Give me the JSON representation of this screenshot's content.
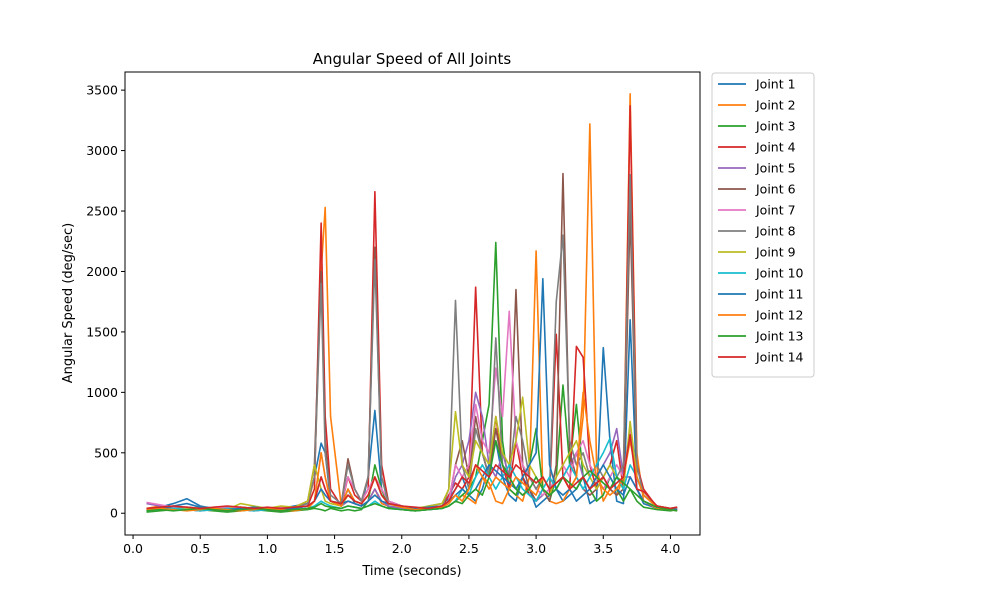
{
  "chart_data": {
    "type": "line",
    "title": "Angular Speed of All Joints",
    "xlabel": "Time (seconds)",
    "ylabel": "Angular Speed (deg/sec)",
    "xlim": [
      -0.06,
      4.22
    ],
    "ylim": [
      -180,
      3650
    ],
    "xticks": [
      0.0,
      0.5,
      1.0,
      1.5,
      2.0,
      2.5,
      3.0,
      3.5,
      4.0
    ],
    "xtick_labels": [
      "0.0",
      "0.5",
      "1.0",
      "1.5",
      "2.0",
      "2.5",
      "3.0",
      "3.5",
      "4.0"
    ],
    "yticks": [
      0,
      500,
      1000,
      1500,
      2000,
      2500,
      3000,
      3500
    ],
    "ytick_labels": [
      "0",
      "500",
      "1000",
      "1500",
      "2000",
      "2500",
      "3000",
      "3500"
    ],
    "grid": false,
    "legend_position": "outside-upper-right",
    "x": [
      0.1,
      0.2,
      0.3,
      0.4,
      0.5,
      0.6,
      0.7,
      0.8,
      0.9,
      1.0,
      1.1,
      1.2,
      1.3,
      1.35,
      1.4,
      1.43,
      1.47,
      1.55,
      1.6,
      1.65,
      1.7,
      1.75,
      1.8,
      1.85,
      1.9,
      2.0,
      2.1,
      2.2,
      2.3,
      2.35,
      2.4,
      2.45,
      2.5,
      2.55,
      2.6,
      2.65,
      2.7,
      2.75,
      2.8,
      2.85,
      2.9,
      2.95,
      3.0,
      3.05,
      3.1,
      3.15,
      3.2,
      3.25,
      3.3,
      3.35,
      3.4,
      3.45,
      3.5,
      3.55,
      3.6,
      3.65,
      3.7,
      3.75,
      3.8,
      3.9,
      4.0,
      4.05
    ],
    "series": [
      {
        "name": "Joint 1",
        "color": "#1f77b4",
        "values": [
          20,
          50,
          80,
          120,
          60,
          40,
          30,
          50,
          40,
          30,
          40,
          60,
          80,
          300,
          580,
          500,
          100,
          60,
          200,
          80,
          60,
          300,
          850,
          200,
          60,
          40,
          30,
          60,
          80,
          120,
          200,
          300,
          150,
          100,
          200,
          400,
          600,
          300,
          150,
          100,
          300,
          200,
          50,
          100,
          150,
          200,
          100,
          150,
          200,
          300,
          80,
          120,
          1370,
          600,
          100,
          80,
          1600,
          200,
          80,
          40,
          30,
          40
        ]
      },
      {
        "name": "Joint 2",
        "color": "#ff7f0e",
        "values": [
          40,
          60,
          50,
          40,
          30,
          20,
          40,
          30,
          20,
          30,
          40,
          50,
          60,
          300,
          2000,
          2530,
          800,
          60,
          100,
          80,
          60,
          100,
          200,
          80,
          60,
          30,
          20,
          30,
          40,
          60,
          100,
          150,
          120,
          80,
          300,
          250,
          100,
          80,
          200,
          150,
          100,
          300,
          2170,
          200,
          100,
          80,
          100,
          200,
          300,
          800,
          3220,
          400,
          100,
          200,
          150,
          300,
          3470,
          500,
          100,
          40,
          30,
          20
        ]
      },
      {
        "name": "Joint 3",
        "color": "#2ca02c",
        "values": [
          10,
          20,
          30,
          40,
          30,
          20,
          10,
          20,
          30,
          20,
          10,
          20,
          30,
          40,
          30,
          20,
          40,
          20,
          30,
          20,
          30,
          100,
          400,
          200,
          50,
          30,
          20,
          30,
          40,
          60,
          100,
          150,
          200,
          300,
          600,
          900,
          2240,
          600,
          200,
          150,
          300,
          400,
          700,
          200,
          100,
          300,
          1060,
          400,
          900,
          300,
          200,
          100,
          150,
          300,
          200,
          100,
          200,
          100,
          50,
          30,
          20,
          30
        ]
      },
      {
        "name": "Joint 4",
        "color": "#d62728",
        "values": [
          30,
          50,
          40,
          30,
          20,
          40,
          30,
          20,
          40,
          30,
          20,
          40,
          60,
          200,
          2400,
          800,
          200,
          60,
          300,
          150,
          100,
          200,
          2660,
          400,
          100,
          60,
          40,
          30,
          50,
          150,
          250,
          200,
          300,
          1870,
          500,
          300,
          800,
          400,
          200,
          600,
          300,
          150,
          100,
          200,
          150,
          1480,
          300,
          200,
          1380,
          1290,
          400,
          200,
          300,
          400,
          600,
          200,
          3370,
          400,
          200,
          50,
          30,
          40
        ]
      },
      {
        "name": "Joint 5",
        "color": "#9467bd",
        "values": [
          80,
          60,
          40,
          30,
          20,
          30,
          20,
          30,
          20,
          30,
          20,
          30,
          40,
          100,
          300,
          200,
          100,
          60,
          100,
          80,
          60,
          100,
          200,
          100,
          60,
          40,
          30,
          40,
          50,
          100,
          300,
          400,
          600,
          1000,
          800,
          400,
          300,
          500,
          300,
          200,
          150,
          200,
          100,
          150,
          200,
          250,
          300,
          400,
          500,
          300,
          200,
          300,
          400,
          500,
          700,
          300,
          300,
          200,
          100,
          50,
          30,
          40
        ]
      },
      {
        "name": "Joint 6",
        "color": "#8c564b",
        "values": [
          40,
          30,
          40,
          50,
          40,
          30,
          40,
          50,
          40,
          30,
          40,
          50,
          100,
          400,
          2000,
          600,
          100,
          80,
          450,
          200,
          100,
          300,
          2200,
          300,
          100,
          60,
          40,
          50,
          60,
          100,
          400,
          600,
          300,
          800,
          500,
          300,
          700,
          400,
          300,
          1850,
          400,
          200,
          100,
          200,
          100,
          400,
          2810,
          500,
          300,
          200,
          150,
          200,
          300,
          200,
          150,
          200,
          2500,
          300,
          150,
          60,
          40,
          50
        ]
      },
      {
        "name": "Joint 7",
        "color": "#e377c2",
        "values": [
          90,
          70,
          50,
          40,
          30,
          40,
          50,
          40,
          30,
          40,
          50,
          40,
          60,
          100,
          500,
          300,
          100,
          80,
          300,
          200,
          100,
          200,
          300,
          200,
          100,
          60,
          40,
          50,
          60,
          100,
          400,
          300,
          400,
          900,
          600,
          500,
          1200,
          800,
          1670,
          600,
          400,
          300,
          200,
          150,
          200,
          300,
          400,
          300,
          500,
          600,
          400,
          300,
          200,
          300,
          400,
          300,
          700,
          200,
          100,
          50,
          40,
          50
        ]
      },
      {
        "name": "Joint 8",
        "color": "#7f7f7f",
        "values": [
          20,
          30,
          40,
          50,
          40,
          30,
          40,
          30,
          40,
          30,
          40,
          50,
          80,
          300,
          1900,
          500,
          150,
          80,
          400,
          200,
          100,
          300,
          2100,
          300,
          80,
          50,
          40,
          30,
          50,
          200,
          1760,
          400,
          200,
          700,
          500,
          300,
          1450,
          400,
          300,
          800,
          600,
          300,
          200,
          300,
          200,
          1750,
          2300,
          600,
          400,
          500,
          300,
          400,
          300,
          200,
          300,
          400,
          2800,
          400,
          150,
          50,
          40,
          30
        ]
      },
      {
        "name": "Joint 9",
        "color": "#bcbd22",
        "values": [
          30,
          40,
          30,
          40,
          50,
          40,
          30,
          80,
          60,
          40,
          60,
          50,
          100,
          400,
          200,
          100,
          80,
          60,
          150,
          100,
          80,
          150,
          300,
          150,
          80,
          50,
          40,
          60,
          80,
          200,
          840,
          400,
          300,
          600,
          500,
          400,
          800,
          500,
          400,
          600,
          960,
          400,
          300,
          200,
          150,
          300,
          400,
          500,
          600,
          400,
          300,
          200,
          300,
          400,
          300,
          200,
          760,
          300,
          150,
          60,
          40,
          50
        ]
      },
      {
        "name": "Joint 10",
        "color": "#17becf",
        "values": [
          20,
          30,
          40,
          30,
          20,
          30,
          40,
          30,
          20,
          30,
          40,
          30,
          40,
          60,
          100,
          80,
          60,
          40,
          60,
          50,
          40,
          60,
          100,
          60,
          40,
          30,
          20,
          30,
          40,
          60,
          100,
          200,
          150,
          300,
          400,
          300,
          200,
          300,
          400,
          300,
          200,
          150,
          100,
          200,
          300,
          200,
          300,
          400,
          300,
          200,
          300,
          400,
          500,
          620,
          300,
          200,
          400,
          300,
          150,
          60,
          30,
          20
        ]
      },
      {
        "name": "Joint 11",
        "color": "#1f77b4",
        "values": [
          40,
          30,
          60,
          80,
          50,
          40,
          30,
          40,
          50,
          40,
          30,
          40,
          60,
          100,
          200,
          150,
          100,
          80,
          100,
          80,
          60,
          100,
          150,
          100,
          80,
          60,
          40,
          50,
          60,
          100,
          150,
          200,
          150,
          200,
          300,
          400,
          350,
          300,
          250,
          200,
          300,
          400,
          500,
          1940,
          400,
          200,
          150,
          200,
          100,
          150,
          200,
          300,
          400,
          300,
          200,
          150,
          300,
          200,
          100,
          50,
          40,
          30
        ]
      },
      {
        "name": "Joint 12",
        "color": "#ff7f0e",
        "values": [
          30,
          40,
          30,
          20,
          30,
          40,
          30,
          20,
          30,
          40,
          30,
          20,
          40,
          100,
          500,
          300,
          100,
          60,
          200,
          100,
          80,
          150,
          300,
          150,
          80,
          50,
          30,
          40,
          50,
          80,
          150,
          100,
          200,
          400,
          300,
          200,
          300,
          250,
          200,
          300,
          250,
          200,
          150,
          300,
          200,
          250,
          300,
          200,
          300,
          1000,
          600,
          300,
          200,
          150,
          200,
          300,
          600,
          300,
          150,
          50,
          30,
          20
        ]
      },
      {
        "name": "Joint 13",
        "color": "#2ca02c",
        "values": [
          20,
          30,
          20,
          30,
          40,
          30,
          20,
          30,
          40,
          30,
          20,
          30,
          40,
          50,
          80,
          60,
          50,
          40,
          60,
          50,
          40,
          60,
          80,
          60,
          40,
          30,
          20,
          30,
          40,
          60,
          100,
          80,
          150,
          200,
          150,
          300,
          600,
          400,
          300,
          200,
          150,
          200,
          300,
          200,
          150,
          200,
          300,
          250,
          200,
          300,
          350,
          300,
          250,
          200,
          300,
          250,
          200,
          150,
          100,
          50,
          30,
          20
        ]
      },
      {
        "name": "Joint 14",
        "color": "#d62728",
        "values": [
          40,
          50,
          60,
          50,
          40,
          50,
          60,
          50,
          40,
          50,
          40,
          50,
          60,
          100,
          300,
          200,
          100,
          80,
          150,
          100,
          80,
          150,
          300,
          150,
          80,
          60,
          50,
          40,
          60,
          100,
          200,
          300,
          250,
          400,
          350,
          300,
          400,
          350,
          300,
          400,
          350,
          300,
          250,
          300,
          200,
          250,
          300,
          200,
          250,
          300,
          200,
          250,
          300,
          200,
          250,
          300,
          650,
          200,
          180,
          60,
          40,
          50
        ]
      }
    ]
  }
}
